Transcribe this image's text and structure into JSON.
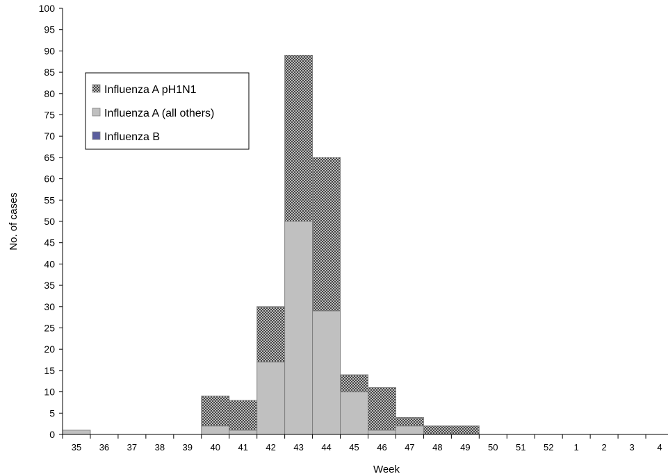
{
  "chart_data": {
    "type": "bar",
    "stacked": true,
    "title": "",
    "xlabel": "Week",
    "ylabel": "No. of cases",
    "ylim": [
      0,
      100
    ],
    "ytick_step": 5,
    "categories": [
      "35",
      "36",
      "37",
      "38",
      "39",
      "40",
      "41",
      "42",
      "43",
      "44",
      "45",
      "46",
      "47",
      "48",
      "49",
      "50",
      "51",
      "52",
      "1",
      "2",
      "3",
      "4"
    ],
    "series": [
      {
        "name": "Influenza A (all others)",
        "color": "#c0c0c0",
        "pattern": "solid",
        "values": [
          1,
          0,
          0,
          0,
          0,
          2,
          1,
          17,
          50,
          29,
          10,
          1,
          2,
          0,
          0,
          0,
          0,
          0,
          0,
          0,
          0,
          0
        ]
      },
      {
        "name": "Influenza A pH1N1",
        "color": "#5a5a5a",
        "pattern": "crosshatch",
        "values": [
          0,
          0,
          0,
          0,
          0,
          7,
          7,
          13,
          39,
          36,
          4,
          10,
          2,
          2,
          2,
          0,
          0,
          0,
          0,
          0,
          0,
          0
        ]
      },
      {
        "name": "Influenza B",
        "color": "#5b5e9e",
        "pattern": "solid",
        "values": [
          0,
          0,
          0,
          0,
          0,
          0,
          0,
          0,
          0,
          0,
          0,
          0,
          0,
          0,
          0,
          0,
          0,
          0,
          0,
          0,
          0,
          0
        ]
      }
    ],
    "legend": {
      "position": "top-left",
      "order": [
        "Influenza A pH1N1",
        "Influenza A (all others)",
        "Influenza B"
      ]
    },
    "grid": false
  }
}
